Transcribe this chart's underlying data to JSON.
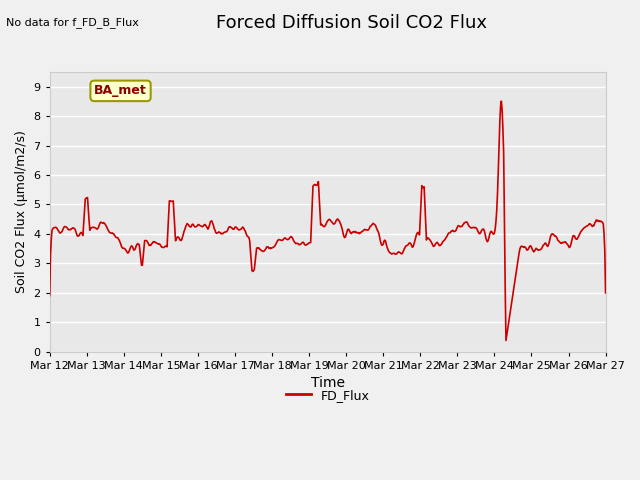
{
  "title": "Forced Diffusion Soil CO2 Flux",
  "xlabel": "Time",
  "ylabel": "Soil CO2 Flux (μmol/m2/s)",
  "no_data_text": "No data for f_FD_B_Flux",
  "legend_label": "FD_Flux",
  "ba_met_label": "BA_met",
  "ylim": [
    0.0,
    9.5
  ],
  "yticks": [
    0.0,
    1.0,
    2.0,
    3.0,
    4.0,
    5.0,
    6.0,
    7.0,
    8.0,
    9.0
  ],
  "line_color": "#cc0000",
  "line_width": 1.2,
  "seed": 42,
  "xtick_labels": [
    "Mar 12",
    "Mar 13",
    "Mar 14",
    "Mar 15",
    "Mar 16",
    "Mar 17",
    "Mar 18",
    "Mar 19",
    "Mar 20",
    "Mar 21",
    "Mar 22",
    "Mar 23",
    "Mar 24",
    "Mar 25",
    "Mar 26",
    "Mar 27"
  ]
}
